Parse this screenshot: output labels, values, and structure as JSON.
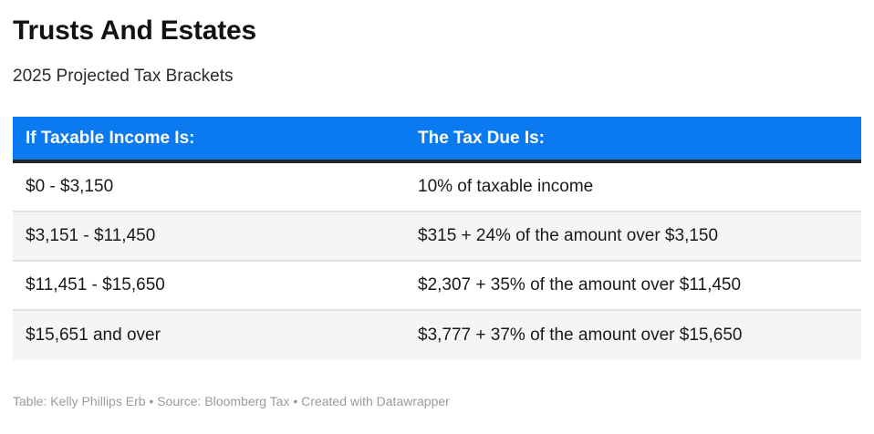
{
  "chart_data": {
    "type": "table",
    "title": "Trusts And Estates",
    "subtitle": "2025 Projected Tax Brackets",
    "columns": [
      "If Taxable Income Is:",
      "The Tax Due Is:"
    ],
    "rows": [
      [
        "$0 - $3,150",
        "10% of taxable income"
      ],
      [
        "$3,151 - $11,450",
        "$315 + 24% of the amount over $3,150"
      ],
      [
        "$11,451 - $15,650",
        "$2,307 + 35% of the amount over $11,450"
      ],
      [
        "$15,651 and over",
        "$3,777 + 37% of the amount over $15,650"
      ]
    ],
    "layout": {
      "header_bg": "#0b7af0",
      "header_text_color": "#ffffff",
      "header_bottom_border": "#262626",
      "alt_row_bg": "#f5f5f5",
      "row_separator": "#e2e2e2",
      "grid": "horizontal-only",
      "legend": "none"
    }
  },
  "footer": {
    "table_label": "Table: ",
    "table_credit": "Kelly Phillips Erb",
    "separator1": " • ",
    "source_label": "Source: ",
    "source_credit": "Bloomberg Tax",
    "separator2": " • ",
    "created_label": "Created with ",
    "created_credit": "Datawrapper"
  }
}
